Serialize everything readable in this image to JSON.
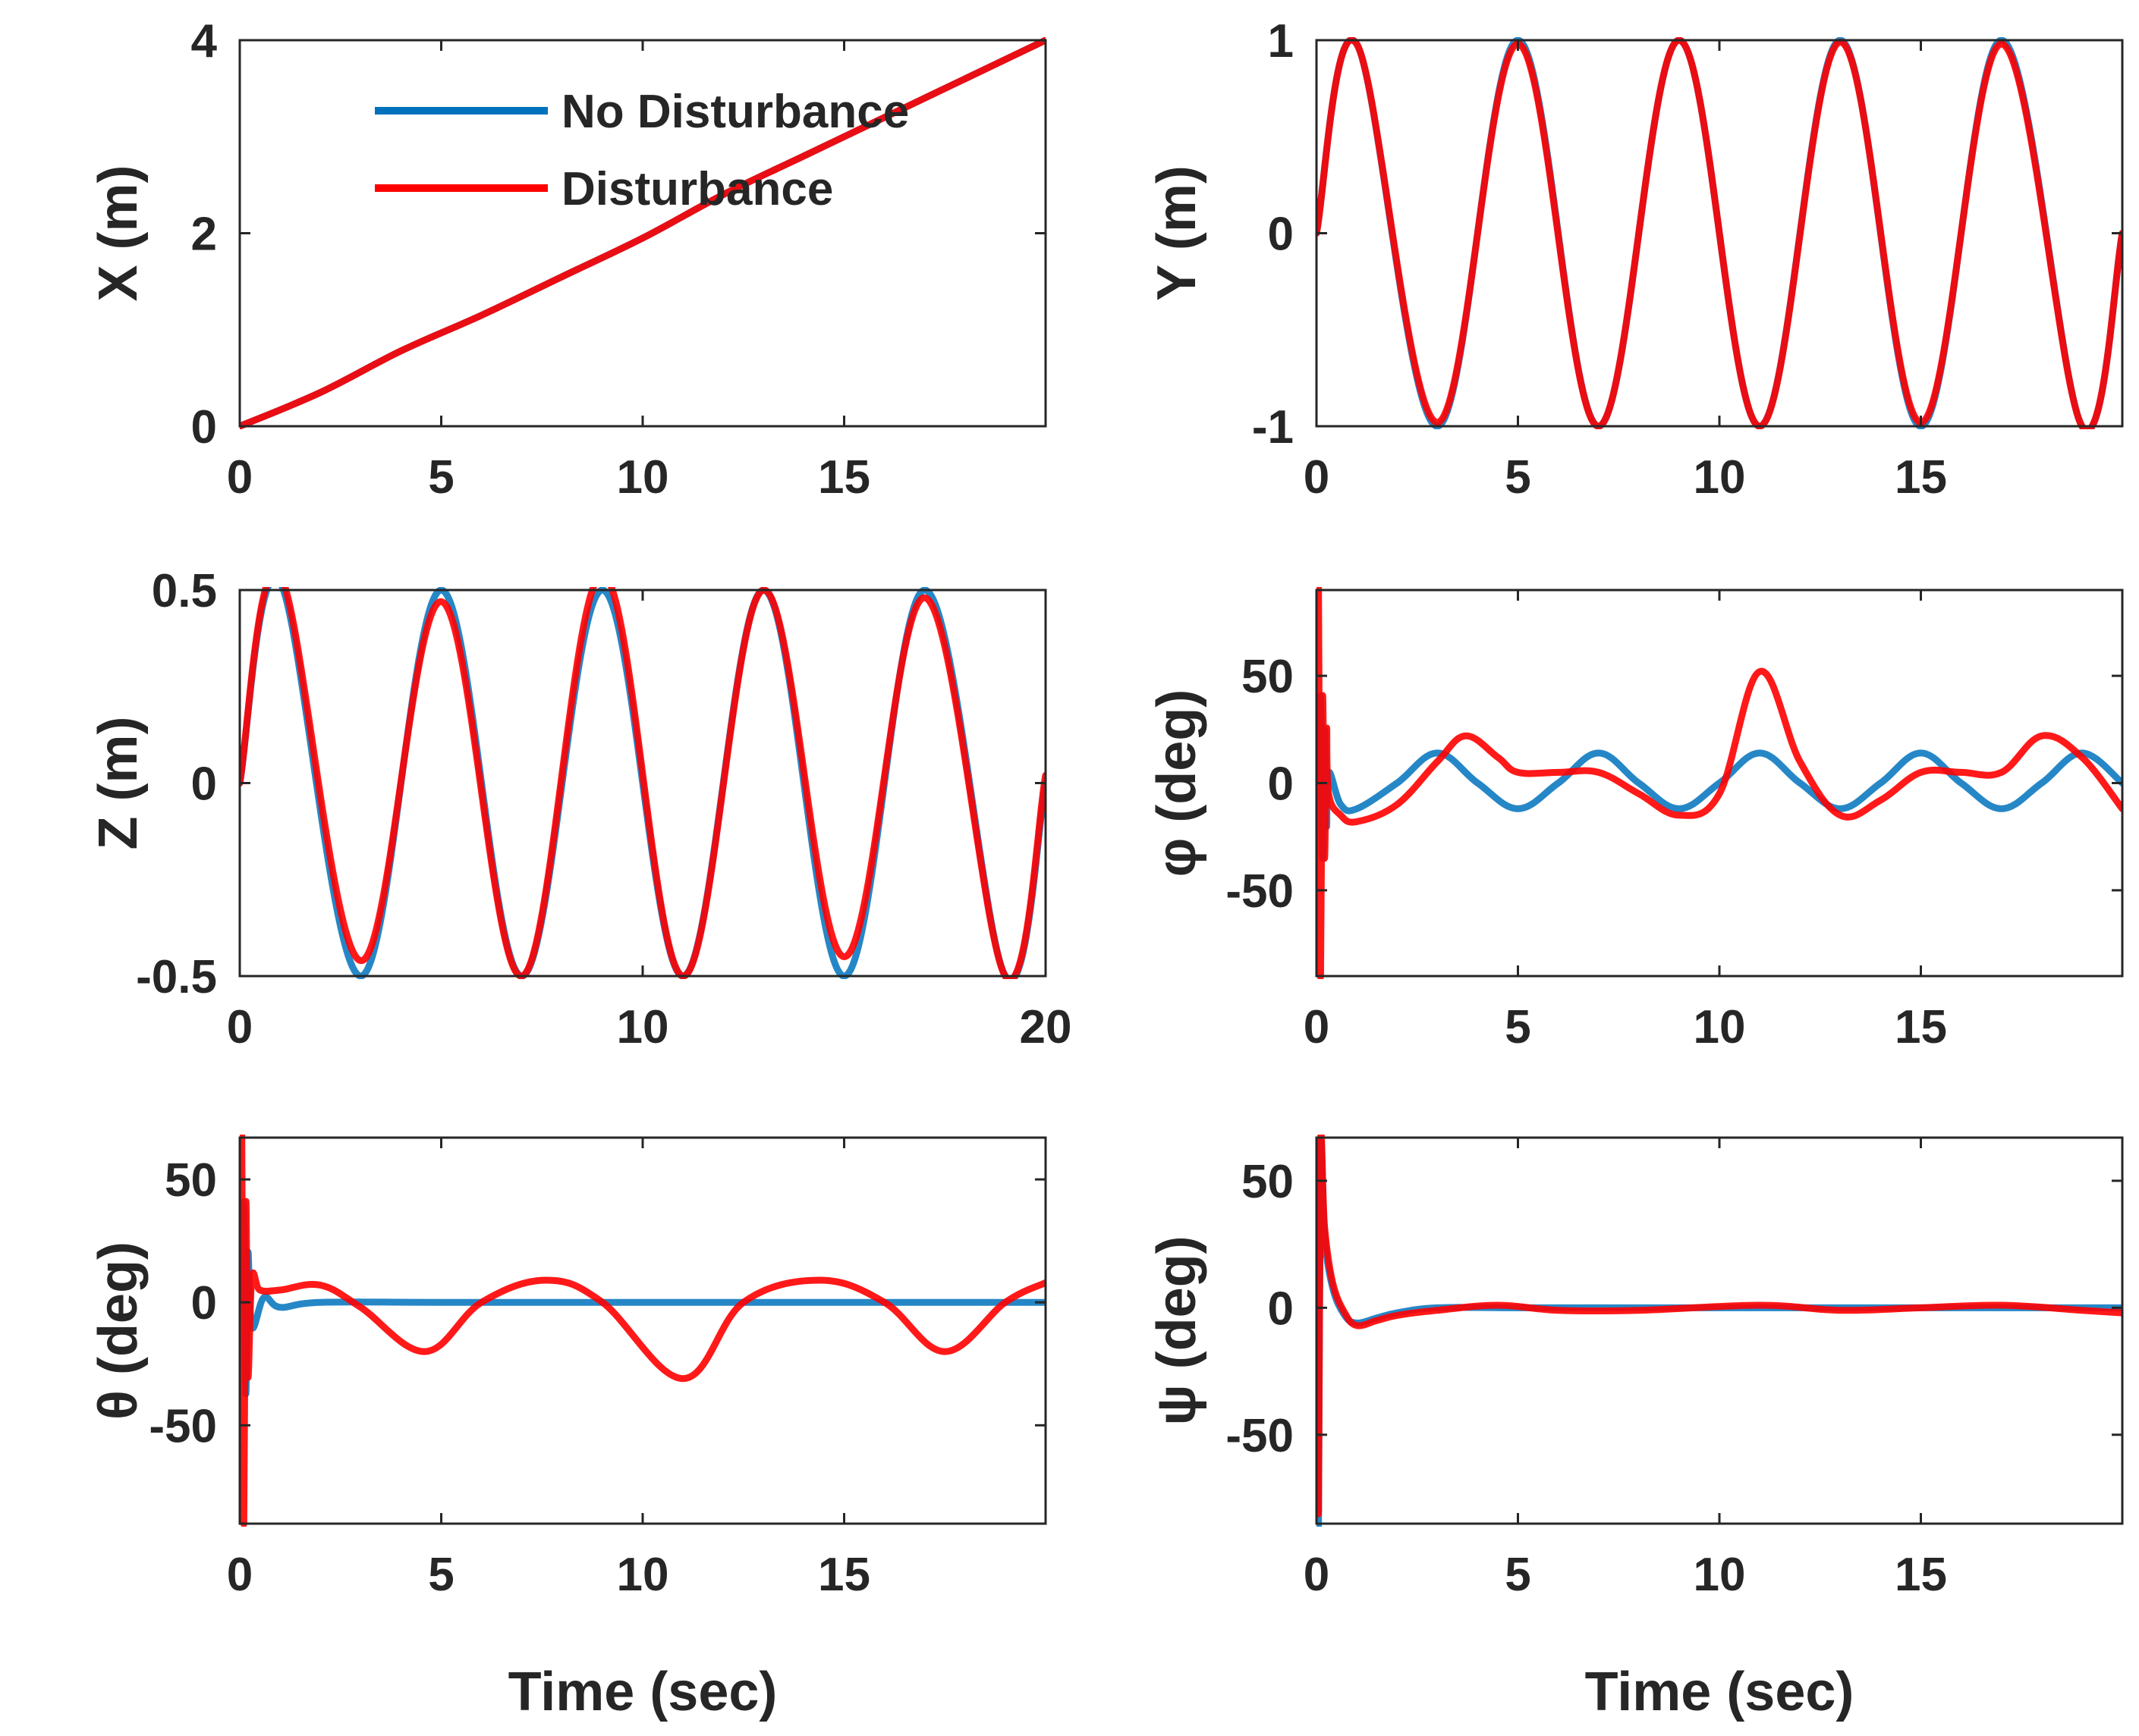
{
  "figure": {
    "legend": {
      "entries": [
        {
          "name": "No Disturbance",
          "color": "#0072BD"
        },
        {
          "name": "Disturbance",
          "color": "#FF0000"
        }
      ],
      "location": "top-left of first panel"
    }
  },
  "chart_data": [
    {
      "id": "x",
      "type": "line",
      "title": "",
      "xlabel": "",
      "ylabel": "X (m)",
      "xlim": [
        0,
        20
      ],
      "ylim": [
        0,
        4
      ],
      "xticks": [
        0,
        5,
        10,
        15
      ],
      "xtick_labels": [
        "0",
        "5",
        "10",
        "15"
      ],
      "yticks": [
        0,
        2,
        4
      ],
      "ytick_labels": [
        "0",
        "2",
        "4"
      ],
      "series": [
        {
          "name": "No Disturbance",
          "color": "#0072BD",
          "x": [
            0,
            2,
            4,
            6,
            8,
            10,
            12,
            14,
            16,
            18,
            20
          ],
          "values": [
            0,
            0.35,
            0.78,
            1.15,
            1.55,
            1.95,
            2.4,
            2.8,
            3.2,
            3.6,
            4.0
          ]
        },
        {
          "name": "Disturbance",
          "color": "#FF0000",
          "x": [
            0,
            2,
            4,
            6,
            8,
            10,
            12,
            14,
            16,
            18,
            20
          ],
          "values": [
            0,
            0.35,
            0.78,
            1.15,
            1.55,
            1.95,
            2.4,
            2.8,
            3.2,
            3.6,
            4.0
          ]
        }
      ]
    },
    {
      "id": "y",
      "type": "line",
      "title": "",
      "xlabel": "",
      "ylabel": "Y (m)",
      "xlim": [
        0,
        20
      ],
      "ylim": [
        -1,
        1
      ],
      "xticks": [
        0,
        5,
        10,
        15
      ],
      "xtick_labels": [
        "0",
        "5",
        "10",
        "15"
      ],
      "yticks": [
        -1,
        0,
        1
      ],
      "ytick_labels": [
        "-1",
        "0",
        "1"
      ],
      "series": [
        {
          "name": "No Disturbance",
          "color": "#0072BD",
          "x": [
            0,
            1,
            3,
            5,
            7,
            9,
            11,
            13,
            15,
            17,
            19,
            20
          ],
          "values": [
            0,
            0.98,
            -1.0,
            1.0,
            -1.0,
            1.0,
            -1.0,
            1.0,
            -1.0,
            1.0,
            -1.0,
            0
          ]
        },
        {
          "name": "Disturbance",
          "color": "#FF0000",
          "x": [
            0,
            1,
            3,
            5,
            7,
            9,
            11,
            13,
            15,
            17,
            19,
            20
          ],
          "values": [
            0,
            0.98,
            -0.98,
            0.98,
            -1.0,
            1.0,
            -1.0,
            0.99,
            -0.98,
            0.98,
            -1.0,
            0
          ]
        }
      ]
    },
    {
      "id": "z",
      "type": "line",
      "title": "",
      "xlabel": "",
      "ylabel": "Z (m)",
      "xlim": [
        0,
        20
      ],
      "ylim": [
        -0.5,
        0.5
      ],
      "xticks": [
        0,
        10,
        20
      ],
      "xtick_labels": [
        "0",
        "10",
        "20"
      ],
      "yticks": [
        -0.5,
        0,
        0.5
      ],
      "ytick_labels": [
        "-0.5",
        "0",
        "0.5"
      ],
      "series": [
        {
          "name": "No Disturbance",
          "color": "#0072BD",
          "x": [
            0,
            1,
            3,
            5,
            7,
            9,
            11,
            13,
            15,
            17,
            19,
            20
          ],
          "values": [
            0,
            0.52,
            -0.5,
            0.5,
            -0.5,
            0.5,
            -0.5,
            0.5,
            -0.5,
            0.5,
            -0.5,
            0
          ]
        },
        {
          "name": "Disturbance",
          "color": "#FF0000",
          "x": [
            0,
            1,
            3,
            5,
            7,
            9,
            11,
            13,
            15,
            17,
            19,
            20
          ],
          "values": [
            0,
            0.54,
            -0.46,
            0.47,
            -0.5,
            0.54,
            -0.5,
            0.5,
            -0.45,
            0.48,
            -0.5,
            0.02
          ]
        }
      ]
    },
    {
      "id": "phi",
      "type": "line",
      "title": "",
      "xlabel": "",
      "ylabel": "φ (deg)",
      "xlim": [
        0,
        20
      ],
      "ylim": [
        -90,
        90
      ],
      "xticks": [
        0,
        5,
        10,
        15
      ],
      "xtick_labels": [
        "0",
        "5",
        "10",
        "15"
      ],
      "yticks": [
        -50,
        0,
        50
      ],
      "ytick_labels": [
        "-50",
        "0",
        "50"
      ],
      "series": [
        {
          "name": "No Disturbance",
          "color": "#0072BD",
          "x": [
            0,
            0.1,
            0.15,
            0.2,
            0.25,
            0.3,
            0.6,
            1,
            2,
            3,
            4,
            5,
            6,
            7,
            8,
            9,
            10,
            11,
            12,
            13,
            14,
            15,
            16,
            17,
            18,
            19,
            20
          ],
          "values": [
            0,
            40,
            -35,
            25,
            -20,
            5,
            -10,
            -12,
            0,
            14,
            0,
            -12,
            0,
            14,
            0,
            -12,
            0,
            14,
            0,
            -12,
            0,
            14,
            0,
            -12,
            0,
            14,
            0
          ]
        },
        {
          "name": "Disturbance",
          "color": "#FF0000",
          "x": [
            0,
            0.05,
            0.1,
            0.15,
            0.2,
            0.25,
            0.3,
            0.6,
            1,
            2,
            3,
            3.7,
            4.5,
            5,
            6,
            7,
            8,
            9,
            10,
            11,
            12,
            13,
            14,
            15,
            16,
            17,
            18,
            19,
            20
          ],
          "values": [
            0,
            90,
            -90,
            40,
            -35,
            25,
            -5,
            -15,
            -18,
            -10,
            10,
            22,
            12,
            5,
            5,
            5,
            -5,
            -15,
            -5,
            52,
            10,
            -15,
            -8,
            5,
            5,
            5,
            22,
            12,
            -12
          ]
        }
      ]
    },
    {
      "id": "theta",
      "type": "line",
      "title": "",
      "xlabel": "Time (sec)",
      "ylabel": "θ (deg)",
      "xlim": [
        0,
        20
      ],
      "ylim": [
        -90,
        67
      ],
      "xticks": [
        0,
        5,
        10,
        15
      ],
      "xtick_labels": [
        "0",
        "5",
        "10",
        "15"
      ],
      "yticks": [
        -50,
        0,
        50
      ],
      "ytick_labels": [
        "-50",
        "0",
        "50"
      ],
      "series": [
        {
          "name": "No Disturbance",
          "color": "#0072BD",
          "x": [
            0,
            0.1,
            0.15,
            0.2,
            0.3,
            0.6,
            1,
            2,
            5,
            10,
            15,
            20
          ],
          "values": [
            0,
            40,
            -37,
            20,
            -10,
            2,
            -2,
            0,
            0,
            0,
            0,
            0
          ]
        },
        {
          "name": "Disturbance",
          "color": "#FF0000",
          "x": [
            0,
            0.05,
            0.1,
            0.15,
            0.2,
            0.3,
            0.5,
            1,
            2,
            3,
            4.6,
            6,
            7.6,
            9,
            11,
            12.5,
            14.4,
            16,
            17.5,
            19,
            20
          ],
          "values": [
            0,
            67,
            -90,
            40,
            -30,
            10,
            5,
            5,
            7,
            -2,
            -20,
            0,
            9,
            0,
            -31,
            0,
            9,
            0,
            -20,
            0,
            8
          ]
        }
      ]
    },
    {
      "id": "psi",
      "type": "line",
      "title": "",
      "xlabel": "Time (sec)",
      "ylabel": "ψ (deg)",
      "xlim": [
        0,
        20
      ],
      "ylim": [
        -85,
        67
      ],
      "xticks": [
        0,
        5,
        10,
        15
      ],
      "xtick_labels": [
        "0",
        "5",
        "10",
        "15"
      ],
      "yticks": [
        -50,
        0,
        50
      ],
      "ytick_labels": [
        "-50",
        "0",
        "50"
      ],
      "series": [
        {
          "name": "No Disturbance",
          "color": "#0072BD",
          "x": [
            0,
            0.05,
            0.1,
            0.2,
            0.4,
            0.7,
            1,
            1.5,
            2,
            3,
            5,
            10,
            15,
            20
          ],
          "values": [
            0,
            -85,
            60,
            28,
            8,
            -3,
            -6,
            -4,
            -2,
            0,
            0,
            0,
            0,
            0
          ]
        },
        {
          "name": "Disturbance",
          "color": "#FF0000",
          "x": [
            0,
            0.05,
            0.1,
            0.2,
            0.4,
            0.7,
            1,
            1.5,
            2,
            3,
            4.5,
            6,
            8,
            11,
            13,
            15,
            17,
            19,
            20
          ],
          "values": [
            0,
            -80,
            63,
            32,
            10,
            -2,
            -7,
            -5,
            -3,
            -1,
            1,
            -1,
            -1,
            1,
            -1,
            0,
            1,
            -1,
            -2
          ]
        }
      ]
    }
  ]
}
